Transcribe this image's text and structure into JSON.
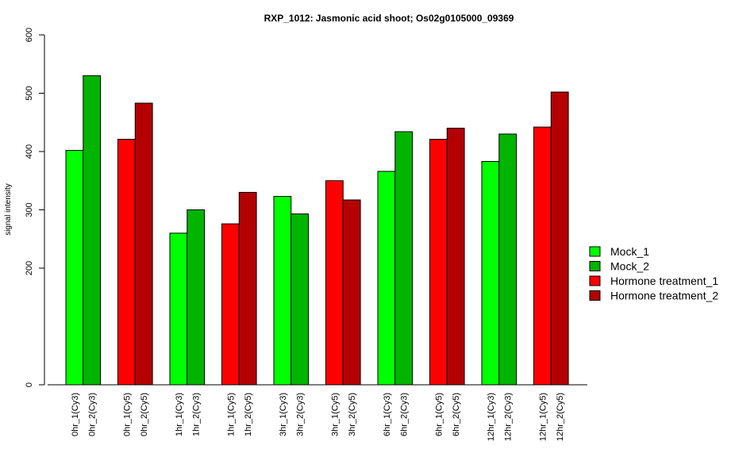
{
  "chart_data": {
    "type": "bar",
    "title": "RXP_1012: Jasmonic acid shoot; Os02g0105000_09369",
    "ylabel": "signal intensity",
    "xlabel": "",
    "ylim": [
      0,
      600
    ],
    "yticks": [
      "0",
      "200",
      "300",
      "400",
      "500",
      "600"
    ],
    "ytick_values": [
      0,
      200,
      300,
      400,
      500,
      600
    ],
    "grid": false,
    "legend_position": "right",
    "legend": [
      {
        "name": "Mock_1",
        "color": "#00FF00"
      },
      {
        "name": "Mock_2",
        "color": "#00B400"
      },
      {
        "name": "Hormone treatment_1",
        "color": "#FF0000"
      },
      {
        "name": "Hormone treatment_2",
        "color": "#B40000"
      }
    ],
    "groups": [
      {
        "bars": [
          {
            "label": "0hr_1(Cy3)",
            "value": 402,
            "color": "#00FF00"
          },
          {
            "label": "0hr_2(Cy3)",
            "value": 530,
            "color": "#00B400"
          }
        ]
      },
      {
        "bars": [
          {
            "label": "0hr_1(Cy5)",
            "value": 421,
            "color": "#FF0000"
          },
          {
            "label": "0hr_2(Cy5)",
            "value": 483,
            "color": "#B40000"
          }
        ]
      },
      {
        "bars": [
          {
            "label": "1hr_1(Cy3)",
            "value": 260,
            "color": "#00FF00"
          },
          {
            "label": "1hr_2(Cy3)",
            "value": 300,
            "color": "#00B400"
          }
        ]
      },
      {
        "bars": [
          {
            "label": "1hr_1(Cy5)",
            "value": 276,
            "color": "#FF0000"
          },
          {
            "label": "1hr_2(Cy5)",
            "value": 330,
            "color": "#B40000"
          }
        ]
      },
      {
        "bars": [
          {
            "label": "3hr_1(Cy3)",
            "value": 323,
            "color": "#00FF00"
          },
          {
            "label": "3hr_2(Cy3)",
            "value": 293,
            "color": "#00B400"
          }
        ]
      },
      {
        "bars": [
          {
            "label": "3hr_1(Cy5)",
            "value": 350,
            "color": "#FF0000"
          },
          {
            "label": "3hr_2(Cy5)",
            "value": 317,
            "color": "#B40000"
          }
        ]
      },
      {
        "bars": [
          {
            "label": "6hr_1(Cy3)",
            "value": 366,
            "color": "#00FF00"
          },
          {
            "label": "6hr_2(Cy3)",
            "value": 434,
            "color": "#00B400"
          }
        ]
      },
      {
        "bars": [
          {
            "label": "6hr_1(Cy5)",
            "value": 421,
            "color": "#FF0000"
          },
          {
            "label": "6hr_2(Cy5)",
            "value": 440,
            "color": "#B40000"
          }
        ]
      },
      {
        "bars": [
          {
            "label": "12hr_1(Cy3)",
            "value": 383,
            "color": "#00FF00"
          },
          {
            "label": "12hr_2(Cy3)",
            "value": 430,
            "color": "#00B400"
          }
        ]
      },
      {
        "bars": [
          {
            "label": "12hr_1(Cy5)",
            "value": 442,
            "color": "#FF0000"
          },
          {
            "label": "12hr_2(Cy5)",
            "value": 502,
            "color": "#B40000"
          }
        ]
      }
    ]
  }
}
